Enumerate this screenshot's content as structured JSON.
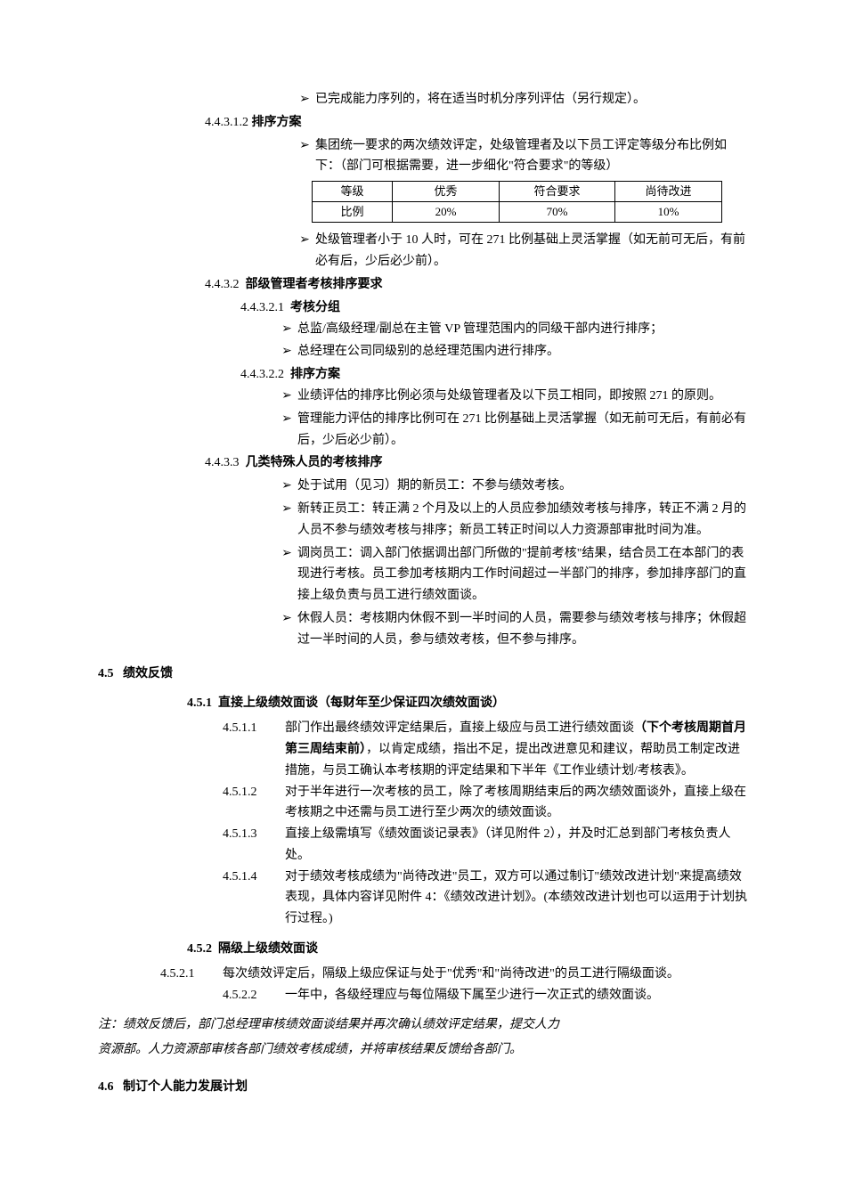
{
  "s1": {
    "bullet1": "已完成能力序列的，将在适当时机分序列评估（另行规定）。",
    "num": "4.4.3.1.2",
    "title": "排序方案",
    "bullet2": "集团统一要求的两次绩效评定，处级管理者及以下员工评定等级分布比例如下：（部门可根据需要，进一步细化\"符合要求\"的等级）",
    "table": {
      "r1c1": "等级",
      "r1c2": "优秀",
      "r1c3": "符合要求",
      "r1c4": "尚待改进",
      "r2c1": "比例",
      "r2c2": "20%",
      "r2c3": "70%",
      "r2c4": "10%"
    },
    "bullet3": "处级管理者小于 10 人时，可在 271 比例基础上灵活掌握（如无前可无后，有前必有后，少后必少前）。"
  },
  "s2": {
    "num": "4.4.3.2",
    "title": "部级管理者考核排序要求",
    "sub1num": "4.4.3.2.1",
    "sub1title": "考核分组",
    "b1": "总监/高级经理/副总在主管 VP 管理范围内的同级干部内进行排序；",
    "b2": "总经理在公司同级别的总经理范围内进行排序。",
    "sub2num": "4.4.3.2.2",
    "sub2title": "排序方案",
    "b3": "业绩评估的排序比例必须与处级管理者及以下员工相同，即按照 271 的原则。",
    "b4": "管理能力评估的排序比例可在 271 比例基础上灵活掌握（如无前可无后，有前必有后，少后必少前）。"
  },
  "s3": {
    "num": "4.4.3.3",
    "title": "几类特殊人员的考核排序",
    "b1": "处于试用（见习）期的新员工：不参与绩效考核。",
    "b2": "新转正员工：转正满 2 个月及以上的人员应参加绩效考核与排序，转正不满 2 月的人员不参与绩效考核与排序；新员工转正时间以人力资源部审批时间为准。",
    "b3": "调岗员工：调入部门依据调出部门所做的\"提前考核\"结果，结合员工在本部门的表现进行考核。员工参加考核期内工作时间超过一半部门的排序，参加排序部门的直接上级负责与员工进行绩效面谈。",
    "b4": "休假人员：考核期内休假不到一半时间的人员，需要参与绩效考核与排序；休假超过一半时间的人员，参与绩效考核，但不参与排序。"
  },
  "s45": {
    "num": "4.5",
    "title": "绩效反馈",
    "sub1num": "4.5.1",
    "sub1title": "直接上级绩效面谈（每财年至少保证四次绩效面谈）",
    "p1num": "4.5.1.1",
    "p1a": "部门作出最终绩效评定结果后，直接上级应与员工进行绩效面谈",
    "p1b": "（下个考核周期首月第三周结束前）",
    "p1c": "，以肯定成绩，指出不足，提出改进意见和建议，帮助员工制定改进措施，与员工确认本考核期的评定结果和下半年《工作业绩计划/考核表》。",
    "p2num": "4.5.1.2",
    "p2": "对于半年进行一次考核的员工，除了考核周期结束后的两次绩效面谈外，直接上级在考核期之中还需与员工进行至少两次的绩效面谈。",
    "p3num": "4.5.1.3",
    "p3": "直接上级需填写《绩效面谈记录表》（详见附件 2），并及时汇总到部门考核负责人处。",
    "p4num": "4.5.1.4",
    "p4": "对于绩效考核成绩为\"尚待改进\"员工，双方可以通过制订\"绩效改进计划\"来提高绩效表现，具体内容详见附件 4：《绩效改进计划》。(本绩效改进计划也可以运用于计划执行过程。)",
    "sub2num": "4.5.2",
    "sub2title": "隔级上级绩效面谈",
    "q1num": "4.5.2.1",
    "q1": "每次绩效评定后，隔级上级应保证与处于\"优秀\"和\"尚待改进\"的员工进行隔级面谈。",
    "q2num": "4.5.2.2",
    "q2": "一年中，各级经理应与每位隔级下属至少进行一次正式的绩效面谈。"
  },
  "note": {
    "l1": "注：绩效反馈后，部门总经理审核绩效面谈结果并再次确认绩效评定结果，提交人力",
    "l2": "资源部。人力资源部审核各部门绩效考核成绩，并将审核结果反馈给各部门。"
  },
  "s46": {
    "num": "4.6",
    "title": "制订个人能力发展计划"
  }
}
